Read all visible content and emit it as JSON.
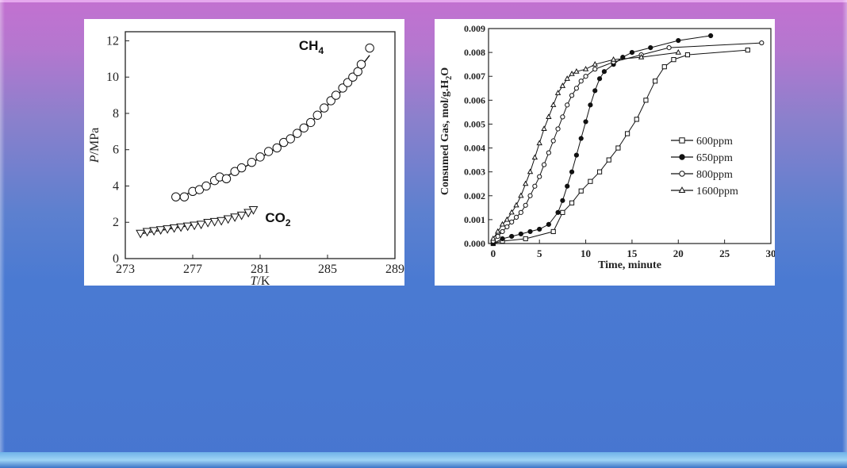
{
  "chart_data": [
    {
      "type": "scatter",
      "xlabel_italic": "T",
      "xlabel_unit": "/K",
      "ylabel_italic": "P",
      "ylabel_unit": "/MPa",
      "xlim": [
        273,
        289
      ],
      "ylim": [
        0,
        12.5
      ],
      "xticks": [
        273,
        277,
        281,
        285,
        289
      ],
      "yticks": [
        0,
        2,
        4,
        6,
        8,
        10,
        12
      ],
      "grid": false,
      "annotations": [
        {
          "text": "CH",
          "sub": "4",
          "x": 283.3,
          "y": 11.5
        },
        {
          "text": "CO",
          "sub": "2",
          "x": 281.3,
          "y": 2.0
        }
      ],
      "series": [
        {
          "label": "CH4",
          "marker": "circle",
          "points": [
            [
              276.0,
              3.4
            ],
            [
              276.5,
              3.4
            ],
            [
              277.0,
              3.7
            ],
            [
              277.4,
              3.8
            ],
            [
              277.8,
              4.0
            ],
            [
              278.3,
              4.3
            ],
            [
              278.6,
              4.5
            ],
            [
              279.0,
              4.4
            ],
            [
              279.5,
              4.8
            ],
            [
              279.9,
              5.0
            ],
            [
              280.5,
              5.3
            ],
            [
              281.0,
              5.6
            ],
            [
              281.5,
              5.9
            ],
            [
              282.0,
              6.1
            ],
            [
              282.4,
              6.4
            ],
            [
              282.8,
              6.6
            ],
            [
              283.2,
              6.9
            ],
            [
              283.6,
              7.2
            ],
            [
              284.0,
              7.5
            ],
            [
              284.4,
              7.9
            ],
            [
              284.8,
              8.3
            ],
            [
              285.2,
              8.7
            ],
            [
              285.5,
              9.0
            ],
            [
              285.9,
              9.4
            ],
            [
              286.2,
              9.7
            ],
            [
              286.5,
              10.0
            ],
            [
              286.8,
              10.3
            ],
            [
              287.0,
              10.7
            ],
            [
              287.5,
              11.6
            ]
          ],
          "fit": [
            [
              276.0,
              3.3
            ],
            [
              278.0,
              4.1
            ],
            [
              280.0,
              5.0
            ],
            [
              282.0,
              6.1
            ],
            [
              284.0,
              7.5
            ],
            [
              286.0,
              9.4
            ],
            [
              287.5,
              11.2
            ]
          ]
        },
        {
          "label": "CO2",
          "marker": "triangle-down",
          "points": [
            [
              273.9,
              1.4
            ],
            [
              274.3,
              1.5
            ],
            [
              274.7,
              1.55
            ],
            [
              275.1,
              1.6
            ],
            [
              275.5,
              1.65
            ],
            [
              275.9,
              1.7
            ],
            [
              276.3,
              1.75
            ],
            [
              276.7,
              1.8
            ],
            [
              277.1,
              1.85
            ],
            [
              277.5,
              1.9
            ],
            [
              277.9,
              2.0
            ],
            [
              278.3,
              2.05
            ],
            [
              278.7,
              2.1
            ],
            [
              279.1,
              2.2
            ],
            [
              279.5,
              2.3
            ],
            [
              279.9,
              2.4
            ],
            [
              280.3,
              2.55
            ],
            [
              280.6,
              2.7
            ]
          ],
          "fit": [
            [
              273.8,
              1.35
            ],
            [
              277.0,
              1.85
            ],
            [
              280.6,
              2.65
            ]
          ]
        }
      ]
    },
    {
      "type": "line",
      "xlabel": "Time, minute",
      "ylabel_main": "Consumed Gas, mol/g.H",
      "ylabel_sub": "2",
      "ylabel_tail": "O",
      "xlim": [
        -0.5,
        30
      ],
      "ylim": [
        0,
        0.009
      ],
      "xticks": [
        0,
        5,
        10,
        15,
        20,
        25,
        30
      ],
      "yticks": [
        "0.000",
        "0.001",
        "0.002",
        "0.003",
        "0.004",
        "0.005",
        "0.006",
        "0.007",
        "0.008",
        "0.009"
      ],
      "legend_position": "right-middle",
      "series": [
        {
          "name": "600ppm",
          "marker": "square",
          "points": [
            [
              0,
              0
            ],
            [
              1.0,
              0.0001
            ],
            [
              3.5,
              0.0002
            ],
            [
              6.5,
              0.0005
            ],
            [
              7.5,
              0.0013
            ],
            [
              8.5,
              0.0017
            ],
            [
              9.5,
              0.0022
            ],
            [
              10.5,
              0.0026
            ],
            [
              11.5,
              0.003
            ],
            [
              12.5,
              0.0035
            ],
            [
              13.5,
              0.004
            ],
            [
              14.5,
              0.0046
            ],
            [
              15.5,
              0.0052
            ],
            [
              16.5,
              0.006
            ],
            [
              17.5,
              0.0068
            ],
            [
              18.5,
              0.0074
            ],
            [
              19.5,
              0.0077
            ],
            [
              21.0,
              0.0079
            ],
            [
              27.5,
              0.0081
            ]
          ]
        },
        {
          "name": "650ppm",
          "marker": "filled-circle",
          "points": [
            [
              0,
              0
            ],
            [
              1,
              0.0002
            ],
            [
              2,
              0.0003
            ],
            [
              3,
              0.0004
            ],
            [
              4,
              0.0005
            ],
            [
              5,
              0.0006
            ],
            [
              6,
              0.0008
            ],
            [
              7,
              0.0013
            ],
            [
              7.5,
              0.0018
            ],
            [
              8,
              0.0024
            ],
            [
              8.5,
              0.003
            ],
            [
              9,
              0.0037
            ],
            [
              9.5,
              0.0044
            ],
            [
              10,
              0.0051
            ],
            [
              10.5,
              0.0058
            ],
            [
              11,
              0.0064
            ],
            [
              11.5,
              0.0069
            ],
            [
              12,
              0.0072
            ],
            [
              13,
              0.0075
            ],
            [
              14,
              0.0078
            ],
            [
              15,
              0.008
            ],
            [
              17,
              0.0082
            ],
            [
              20,
              0.0085
            ],
            [
              23.5,
              0.0087
            ]
          ]
        },
        {
          "name": "800ppm",
          "marker": "circle",
          "points": [
            [
              0,
              0.0001
            ],
            [
              0.5,
              0.0003
            ],
            [
              1,
              0.0005
            ],
            [
              1.5,
              0.0007
            ],
            [
              2,
              0.0009
            ],
            [
              2.5,
              0.0011
            ],
            [
              3,
              0.0013
            ],
            [
              3.5,
              0.0016
            ],
            [
              4,
              0.002
            ],
            [
              4.5,
              0.0024
            ],
            [
              5,
              0.0028
            ],
            [
              5.5,
              0.0033
            ],
            [
              6,
              0.0038
            ],
            [
              6.5,
              0.0043
            ],
            [
              7,
              0.0048
            ],
            [
              7.5,
              0.0053
            ],
            [
              8,
              0.0058
            ],
            [
              8.5,
              0.0062
            ],
            [
              9,
              0.0065
            ],
            [
              9.5,
              0.0068
            ],
            [
              10,
              0.007
            ],
            [
              11,
              0.0073
            ],
            [
              13,
              0.0076
            ],
            [
              16,
              0.0079
            ],
            [
              19,
              0.0082
            ],
            [
              29,
              0.0084
            ]
          ]
        },
        {
          "name": "1600ppm",
          "marker": "triangle",
          "points": [
            [
              0,
              0.0002
            ],
            [
              0.5,
              0.0005
            ],
            [
              1,
              0.0008
            ],
            [
              1.5,
              0.001
            ],
            [
              2,
              0.0013
            ],
            [
              2.5,
              0.0016
            ],
            [
              3,
              0.002
            ],
            [
              3.5,
              0.0025
            ],
            [
              4,
              0.003
            ],
            [
              4.5,
              0.0036
            ],
            [
              5,
              0.0042
            ],
            [
              5.5,
              0.0048
            ],
            [
              6,
              0.0053
            ],
            [
              6.5,
              0.0058
            ],
            [
              7,
              0.0063
            ],
            [
              7.5,
              0.0066
            ],
            [
              8,
              0.0069
            ],
            [
              8.5,
              0.0071
            ],
            [
              9,
              0.0072
            ],
            [
              10,
              0.0073
            ],
            [
              11,
              0.0075
            ],
            [
              13,
              0.0077
            ],
            [
              16,
              0.0078
            ],
            [
              20,
              0.008
            ]
          ]
        }
      ]
    }
  ]
}
